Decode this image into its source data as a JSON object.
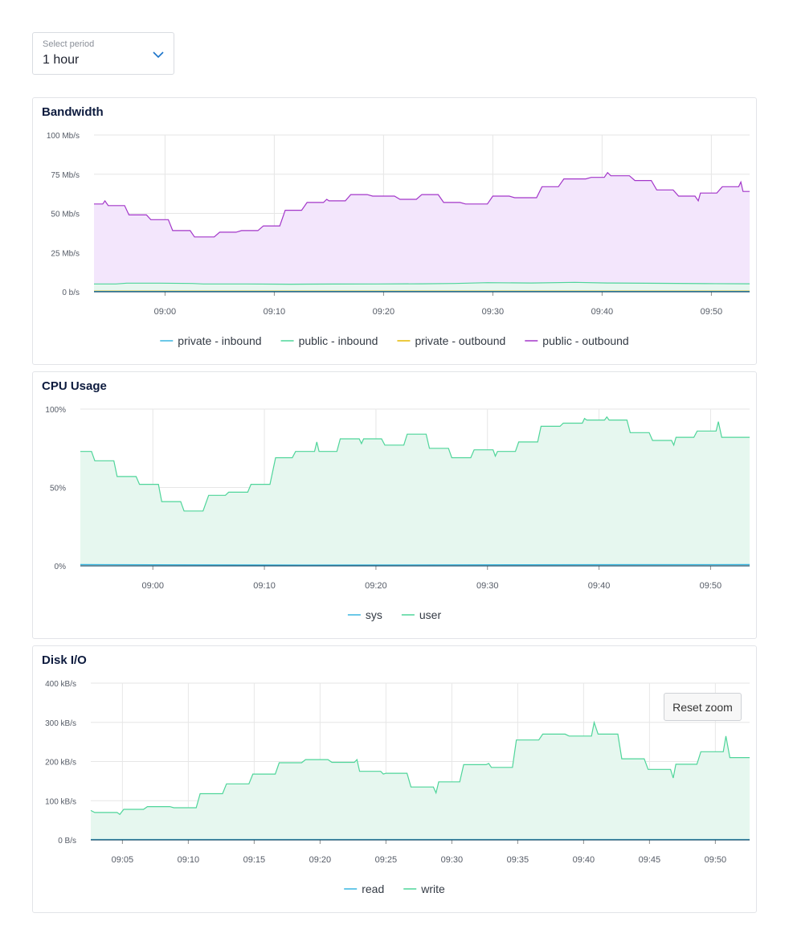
{
  "period_select": {
    "label": "Select period",
    "value": "1 hour"
  },
  "chart_data": [
    {
      "id": "bandwidth",
      "type": "area",
      "title": "Bandwidth",
      "y_ticks": [
        "0 b/s",
        "25 Mb/s",
        "50 Mb/s",
        "75 Mb/s",
        "100 Mb/s"
      ],
      "ylim": [
        0,
        100
      ],
      "xlim": [
        0,
        60
      ],
      "x_ticks": [
        {
          "label": "09:00",
          "t": 6.5
        },
        {
          "label": "09:10",
          "t": 16.5
        },
        {
          "label": "09:20",
          "t": 26.5
        },
        {
          "label": "09:30",
          "t": 36.5
        },
        {
          "label": "09:40",
          "t": 46.5
        },
        {
          "label": "09:50",
          "t": 56.5
        }
      ],
      "series": [
        {
          "name": "private - inbound",
          "color": "#3ab6e0",
          "fill": "none",
          "points": [
            [
              0,
              0.2
            ],
            [
              60,
              0.2
            ]
          ]
        },
        {
          "name": "public - inbound",
          "color": "#4fd59a",
          "fill": "#e6f7ef",
          "points": [
            [
              0,
              5
            ],
            [
              2,
              5
            ],
            [
              3,
              5.5
            ],
            [
              6,
              5.5
            ],
            [
              9,
              5.3
            ],
            [
              10,
              5
            ],
            [
              14,
              5
            ],
            [
              18,
              4.8
            ],
            [
              22,
              4.9
            ],
            [
              26,
              5
            ],
            [
              30,
              5.1
            ],
            [
              33,
              5.3
            ],
            [
              36,
              5.8
            ],
            [
              40,
              5.6
            ],
            [
              44,
              6
            ],
            [
              47,
              5.6
            ],
            [
              52,
              5.4
            ],
            [
              56,
              5.2
            ],
            [
              60,
              5.1
            ]
          ]
        },
        {
          "name": "private - outbound",
          "color": "#e6b800",
          "fill": "none",
          "points": [
            [
              0,
              0.4
            ],
            [
              60,
              0.4
            ]
          ]
        },
        {
          "name": "public - outbound",
          "color": "#a336c9",
          "fill": "#f3e6fc",
          "points": [
            [
              0,
              56
            ],
            [
              0.8,
              56
            ],
            [
              1,
              58
            ],
            [
              1.3,
              55
            ],
            [
              2.8,
              55
            ],
            [
              3.2,
              49
            ],
            [
              4.8,
              49
            ],
            [
              5.2,
              46
            ],
            [
              6.8,
              46
            ],
            [
              7.2,
              39
            ],
            [
              8.8,
              39
            ],
            [
              9.2,
              35
            ],
            [
              11,
              35
            ],
            [
              11.5,
              38
            ],
            [
              13,
              38
            ],
            [
              13.5,
              39
            ],
            [
              15,
              39
            ],
            [
              15.5,
              42
            ],
            [
              17,
              42
            ],
            [
              17.5,
              52
            ],
            [
              19,
              52
            ],
            [
              19.5,
              57
            ],
            [
              21,
              57
            ],
            [
              21.3,
              59
            ],
            [
              21.5,
              58
            ],
            [
              23,
              58
            ],
            [
              23.5,
              62
            ],
            [
              25,
              62
            ],
            [
              25.5,
              61
            ],
            [
              27.5,
              61
            ],
            [
              28,
              59
            ],
            [
              29.5,
              59
            ],
            [
              30,
              62
            ],
            [
              31.5,
              62
            ],
            [
              32,
              57
            ],
            [
              33.5,
              57
            ],
            [
              34,
              56
            ],
            [
              36,
              56
            ],
            [
              36.5,
              61
            ],
            [
              38,
              61
            ],
            [
              38.5,
              60
            ],
            [
              40.5,
              60
            ],
            [
              41,
              67
            ],
            [
              42.5,
              67
            ],
            [
              43,
              72
            ],
            [
              45,
              72
            ],
            [
              45.5,
              73
            ],
            [
              46.7,
              73
            ],
            [
              47,
              76
            ],
            [
              47.3,
              74
            ],
            [
              49,
              74
            ],
            [
              49.5,
              71
            ],
            [
              51,
              71
            ],
            [
              51.5,
              65
            ],
            [
              53,
              65
            ],
            [
              53.5,
              61
            ],
            [
              55,
              61
            ],
            [
              55.3,
              58
            ],
            [
              55.5,
              63
            ],
            [
              57,
              63
            ],
            [
              57.5,
              67
            ],
            [
              59,
              67
            ],
            [
              59.2,
              70
            ],
            [
              59.4,
              64
            ],
            [
              60,
              64
            ]
          ]
        }
      ]
    },
    {
      "id": "cpu",
      "type": "area",
      "title": "CPU Usage",
      "y_ticks": [
        "0%",
        "50%",
        "100%"
      ],
      "ylim": [
        0,
        100
      ],
      "xlim": [
        0,
        60
      ],
      "x_ticks": [
        {
          "label": "09:00",
          "t": 6.5
        },
        {
          "label": "09:10",
          "t": 16.5
        },
        {
          "label": "09:20",
          "t": 26.5
        },
        {
          "label": "09:30",
          "t": 36.5
        },
        {
          "label": "09:40",
          "t": 46.5
        },
        {
          "label": "09:50",
          "t": 56.5
        }
      ],
      "series": [
        {
          "name": "sys",
          "color": "#3ab6e0",
          "fill": "none",
          "points": [
            [
              0,
              0.8
            ],
            [
              20,
              0.5
            ],
            [
              40,
              0.7
            ],
            [
              60,
              0.8
            ]
          ]
        },
        {
          "name": "user",
          "color": "#4fd59a",
          "fill": "#e6f7ef",
          "points": [
            [
              0,
              73
            ],
            [
              1,
              73
            ],
            [
              1.3,
              67
            ],
            [
              3,
              67
            ],
            [
              3.3,
              57
            ],
            [
              5,
              57
            ],
            [
              5.3,
              52
            ],
            [
              7,
              52
            ],
            [
              7.3,
              41
            ],
            [
              9,
              41
            ],
            [
              9.3,
              35
            ],
            [
              11,
              35
            ],
            [
              11.5,
              45
            ],
            [
              13,
              45
            ],
            [
              13.3,
              47
            ],
            [
              15,
              47
            ],
            [
              15.3,
              52
            ],
            [
              17,
              52
            ],
            [
              17.5,
              69
            ],
            [
              19,
              69
            ],
            [
              19.3,
              73
            ],
            [
              21,
              73
            ],
            [
              21.2,
              79
            ],
            [
              21.4,
              73
            ],
            [
              23,
              73
            ],
            [
              23.3,
              81
            ],
            [
              25,
              81
            ],
            [
              25.2,
              78
            ],
            [
              25.4,
              81
            ],
            [
              27,
              81
            ],
            [
              27.3,
              77
            ],
            [
              29,
              77
            ],
            [
              29.3,
              84
            ],
            [
              31,
              84
            ],
            [
              31.3,
              75
            ],
            [
              33,
              75
            ],
            [
              33.3,
              69
            ],
            [
              35,
              69
            ],
            [
              35.3,
              74
            ],
            [
              37,
              74
            ],
            [
              37.2,
              70
            ],
            [
              37.4,
              73
            ],
            [
              39,
              73
            ],
            [
              39.3,
              79
            ],
            [
              41,
              79
            ],
            [
              41.3,
              89
            ],
            [
              43,
              89
            ],
            [
              43.3,
              91
            ],
            [
              45,
              91
            ],
            [
              45.2,
              94
            ],
            [
              45.4,
              93
            ],
            [
              47,
              93
            ],
            [
              47.2,
              95
            ],
            [
              47.4,
              93
            ],
            [
              49,
              93
            ],
            [
              49.3,
              85
            ],
            [
              51,
              85
            ],
            [
              51.3,
              80
            ],
            [
              53,
              80
            ],
            [
              53.2,
              77
            ],
            [
              53.4,
              82
            ],
            [
              55,
              82
            ],
            [
              55.3,
              86
            ],
            [
              57,
              86
            ],
            [
              57.2,
              92
            ],
            [
              57.5,
              82
            ],
            [
              60,
              82
            ]
          ]
        }
      ]
    },
    {
      "id": "disk",
      "type": "area",
      "title": "Disk I/O",
      "y_ticks": [
        "0 B/s",
        "100 kB/s",
        "200 kB/s",
        "300 kB/s",
        "400 kB/s"
      ],
      "ylim": [
        0,
        400
      ],
      "xlim": [
        0,
        50
      ],
      "x_ticks": [
        {
          "label": "09:05",
          "t": 2.4
        },
        {
          "label": "09:10",
          "t": 7.4
        },
        {
          "label": "09:15",
          "t": 12.4
        },
        {
          "label": "09:20",
          "t": 17.4
        },
        {
          "label": "09:25",
          "t": 22.4
        },
        {
          "label": "09:30",
          "t": 27.4
        },
        {
          "label": "09:35",
          "t": 32.4
        },
        {
          "label": "09:40",
          "t": 37.4
        },
        {
          "label": "09:45",
          "t": 42.4
        },
        {
          "label": "09:50",
          "t": 47.4
        }
      ],
      "reset_zoom_label": "Reset zoom",
      "series": [
        {
          "name": "read",
          "color": "#3ab6e0",
          "fill": "none",
          "points": [
            [
              0,
              1
            ],
            [
              50,
              1
            ]
          ]
        },
        {
          "name": "write",
          "color": "#4fd59a",
          "fill": "#e6f7ef",
          "points": [
            [
              0,
              75
            ],
            [
              0.3,
              70
            ],
            [
              2,
              70
            ],
            [
              2.2,
              65
            ],
            [
              2.5,
              78
            ],
            [
              4,
              78
            ],
            [
              4.3,
              85
            ],
            [
              6,
              85
            ],
            [
              6.3,
              82
            ],
            [
              8,
              82
            ],
            [
              8.3,
              118
            ],
            [
              10,
              118
            ],
            [
              10.3,
              143
            ],
            [
              12,
              143
            ],
            [
              12.3,
              168
            ],
            [
              14,
              168
            ],
            [
              14.3,
              197
            ],
            [
              16,
              197
            ],
            [
              16.3,
              205
            ],
            [
              18,
              205
            ],
            [
              18.3,
              198
            ],
            [
              20,
              198
            ],
            [
              20.2,
              205
            ],
            [
              20.4,
              175
            ],
            [
              22,
              175
            ],
            [
              22.2,
              168
            ],
            [
              22.4,
              170
            ],
            [
              24,
              170
            ],
            [
              24.3,
              135
            ],
            [
              26,
              135
            ],
            [
              26.2,
              120
            ],
            [
              26.4,
              148
            ],
            [
              28,
              148
            ],
            [
              28.3,
              192
            ],
            [
              30,
              192
            ],
            [
              30.2,
              195
            ],
            [
              30.4,
              185
            ],
            [
              32,
              185
            ],
            [
              32.3,
              255
            ],
            [
              34,
              255
            ],
            [
              34.3,
              270
            ],
            [
              36,
              270
            ],
            [
              36.3,
              265
            ],
            [
              38,
              265
            ],
            [
              38.2,
              300
            ],
            [
              38.5,
              270
            ],
            [
              40,
              270
            ],
            [
              40.3,
              207
            ],
            [
              42,
              207
            ],
            [
              42.3,
              180
            ],
            [
              44,
              180
            ],
            [
              44.2,
              158
            ],
            [
              44.4,
              193
            ],
            [
              46,
              193
            ],
            [
              46.3,
              225
            ],
            [
              48,
              225
            ],
            [
              48.2,
              265
            ],
            [
              48.5,
              210
            ],
            [
              50,
              210
            ]
          ]
        }
      ]
    }
  ]
}
